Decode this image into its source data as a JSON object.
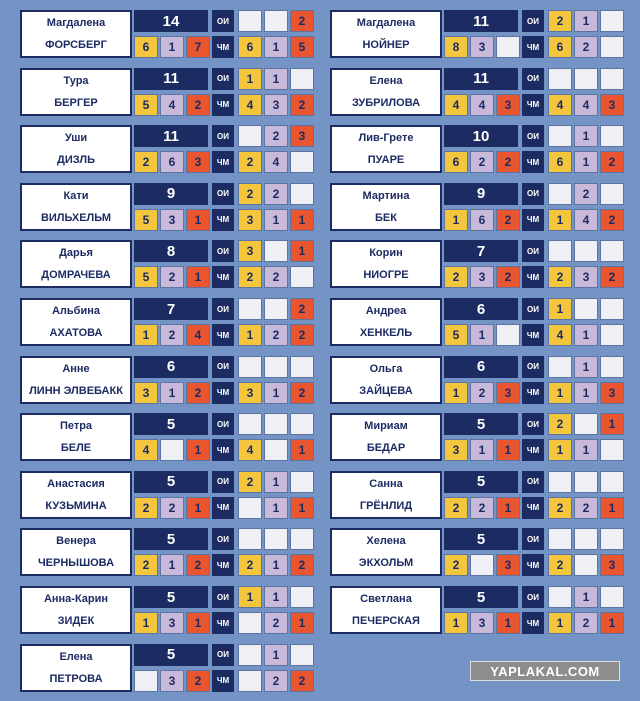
{
  "labels": {
    "olympics": "ОИ",
    "world": "ЧМ"
  },
  "watermark": "YAPLAKAL.COM",
  "columns": [
    [
      {
        "first": "Магдалена",
        "last": "ФОРСБЕРГ",
        "total": 14,
        "overall": [
          6,
          1,
          7
        ],
        "olympics": [
          null,
          null,
          2
        ],
        "world": [
          6,
          1,
          5
        ]
      },
      {
        "first": "Тура",
        "last": "БЕРГЕР",
        "total": 11,
        "overall": [
          5,
          4,
          2
        ],
        "olympics": [
          1,
          1,
          null
        ],
        "world": [
          4,
          3,
          2
        ]
      },
      {
        "first": "Уши",
        "last": "ДИЗЛЬ",
        "total": 11,
        "overall": [
          2,
          6,
          3
        ],
        "olympics": [
          null,
          2,
          3
        ],
        "world": [
          2,
          4,
          null
        ]
      },
      {
        "first": "Кати",
        "last": "ВИЛЬХЕЛЬМ",
        "total": 9,
        "overall": [
          5,
          3,
          1
        ],
        "olympics": [
          2,
          2,
          null
        ],
        "world": [
          3,
          1,
          1
        ]
      },
      {
        "first": "Дарья",
        "last": "ДОМРАЧЕВА",
        "total": 8,
        "overall": [
          5,
          2,
          1
        ],
        "olympics": [
          3,
          null,
          1
        ],
        "world": [
          2,
          2,
          null
        ]
      },
      {
        "first": "Альбина",
        "last": "АХАТОВА",
        "total": 7,
        "overall": [
          1,
          2,
          4
        ],
        "olympics": [
          null,
          null,
          2
        ],
        "world": [
          1,
          2,
          2
        ]
      },
      {
        "first": "Анне",
        "last": "ЛИНН ЭЛВЕБАКК",
        "total": 6,
        "overall": [
          3,
          1,
          2
        ],
        "olympics": [
          null,
          null,
          null
        ],
        "world": [
          3,
          1,
          2
        ]
      },
      {
        "first": "Петра",
        "last": "БЕЛЕ",
        "total": 5,
        "overall": [
          4,
          null,
          1
        ],
        "olympics": [
          null,
          null,
          null
        ],
        "world": [
          4,
          null,
          1
        ]
      },
      {
        "first": "Анастасия",
        "last": "КУЗЬМИНА",
        "total": 5,
        "overall": [
          2,
          2,
          1
        ],
        "olympics": [
          2,
          1,
          null
        ],
        "world": [
          null,
          1,
          1
        ]
      },
      {
        "first": "Венера",
        "last": "ЧЕРНЫШОВА",
        "total": 5,
        "overall": [
          2,
          1,
          2
        ],
        "olympics": [
          null,
          null,
          null
        ],
        "world": [
          2,
          1,
          2
        ]
      },
      {
        "first": "Анна-Карин",
        "last": "ЗИДЕК",
        "total": 5,
        "overall": [
          1,
          3,
          1
        ],
        "olympics": [
          1,
          1,
          null
        ],
        "world": [
          null,
          2,
          1
        ]
      },
      {
        "first": "Елена",
        "last": "ПЕТРОВА",
        "total": 5,
        "overall": [
          null,
          3,
          2
        ],
        "olympics": [
          null,
          1,
          null
        ],
        "world": [
          null,
          2,
          2
        ]
      }
    ],
    [
      {
        "first": "Магдалена",
        "last": "НОЙНЕР",
        "total": 11,
        "overall": [
          8,
          3,
          null
        ],
        "olympics": [
          2,
          1,
          null
        ],
        "world": [
          6,
          2,
          null
        ]
      },
      {
        "first": "Елена",
        "last": "ЗУБРИЛОВА",
        "total": 11,
        "overall": [
          4,
          4,
          3
        ],
        "olympics": [
          null,
          null,
          null
        ],
        "world": [
          4,
          4,
          3
        ]
      },
      {
        "first": "Лив-Грете",
        "last": "ПУАРЕ",
        "total": 10,
        "overall": [
          6,
          2,
          2
        ],
        "olympics": [
          null,
          1,
          null
        ],
        "world": [
          6,
          1,
          2
        ]
      },
      {
        "first": "Мартина",
        "last": "БЕК",
        "total": 9,
        "overall": [
          1,
          6,
          2
        ],
        "olympics": [
          null,
          2,
          null
        ],
        "world": [
          1,
          4,
          2
        ]
      },
      {
        "first": "Корин",
        "last": "НИОГРЕ",
        "total": 7,
        "overall": [
          2,
          3,
          2
        ],
        "olympics": [
          null,
          null,
          null
        ],
        "world": [
          2,
          3,
          2
        ]
      },
      {
        "first": "Андреа",
        "last": "ХЕНКЕЛЬ",
        "total": 6,
        "overall": [
          5,
          1,
          null
        ],
        "olympics": [
          1,
          null,
          null
        ],
        "world": [
          4,
          1,
          null
        ]
      },
      {
        "first": "Ольга",
        "last": "ЗАЙЦЕВА",
        "total": 6,
        "overall": [
          1,
          2,
          3
        ],
        "olympics": [
          null,
          1,
          null
        ],
        "world": [
          1,
          1,
          3
        ]
      },
      {
        "first": "Мириам",
        "last": "БЕДАР",
        "total": 5,
        "overall": [
          3,
          1,
          1
        ],
        "olympics": [
          2,
          null,
          1
        ],
        "world": [
          1,
          1,
          null
        ]
      },
      {
        "first": "Санна",
        "last": "ГРЁНЛИД",
        "total": 5,
        "overall": [
          2,
          2,
          1
        ],
        "olympics": [
          null,
          null,
          null
        ],
        "world": [
          2,
          2,
          1
        ]
      },
      {
        "first": "Хелена",
        "last": "ЭКХОЛЬМ",
        "total": 5,
        "overall": [
          2,
          null,
          3
        ],
        "olympics": [
          null,
          null,
          null
        ],
        "world": [
          2,
          null,
          3
        ]
      },
      {
        "first": "Светлана",
        "last": "ПЕЧЕРСКАЯ",
        "total": 5,
        "overall": [
          1,
          3,
          1
        ],
        "olympics": [
          null,
          1,
          null
        ],
        "world": [
          1,
          2,
          1
        ]
      }
    ]
  ]
}
